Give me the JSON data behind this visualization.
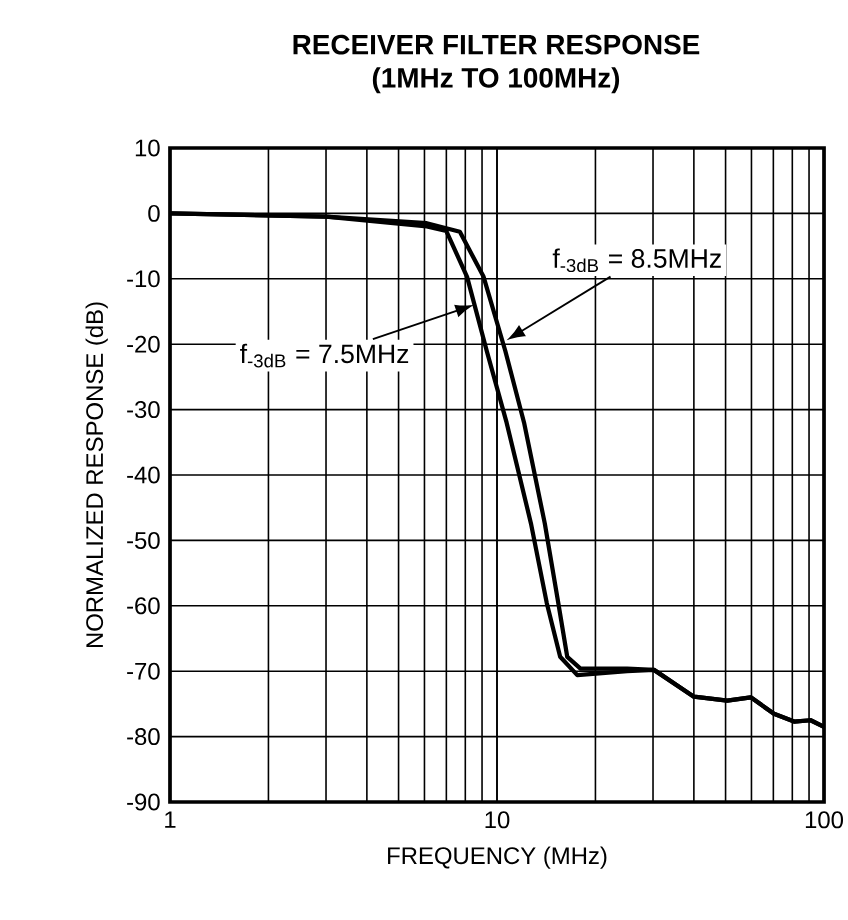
{
  "chart_data": {
    "type": "line",
    "title": "RECEIVER FILTER RESPONSE",
    "subtitle": "(1MHz TO 100MHz)",
    "xlabel": "FREQUENCY (MHz)",
    "ylabel": "NORMALIZED RESPONSE (dB)",
    "log": "x",
    "xlim": [
      1,
      100
    ],
    "xticks": [
      1,
      10,
      100
    ],
    "ylim": [
      -90,
      10
    ],
    "yticks": [
      10,
      0,
      -10,
      -20,
      -30,
      -40,
      -50,
      -60,
      -70,
      -80,
      -90
    ],
    "grid": true,
    "marker": "none",
    "line_style": "solid",
    "series": [
      {
        "color": "#000000",
        "x": [
          1,
          3.0,
          6.1,
          7.0,
          8.1,
          9.3,
          10.7,
          12.7,
          14.2,
          15.6,
          17.6,
          25,
          30.2,
          40,
          50.6,
          59.7,
          70.3,
          81,
          91,
          100
        ],
        "values": [
          0,
          -0.5,
          -2,
          -2.7,
          -9.7,
          -21,
          -32,
          -47.4,
          -59.6,
          -67.8,
          -70.6,
          -70,
          -69.8,
          -73.9,
          -74.5,
          -74,
          -76.5,
          -77.7,
          -77.5,
          -78.5
        ]
      },
      {
        "color": "#000000",
        "x": [
          1,
          3.0,
          6.1,
          7.7,
          9.1,
          10.6,
          12.1,
          14.0,
          15.4,
          16.4,
          18.0,
          25,
          30.2,
          40,
          50.6,
          59.7,
          70.3,
          81,
          91,
          100
        ],
        "values": [
          0,
          -0.5,
          -1.5,
          -2.8,
          -9.7,
          -21,
          -32,
          -47.4,
          -59.6,
          -67.8,
          -69.6,
          -69.6,
          -69.8,
          -73.9,
          -74.5,
          -74,
          -76.5,
          -77.7,
          -77.5,
          -78.5
        ]
      }
    ],
    "annotations": [
      {
        "text": "f$_{-3dB}$ = 7.5MHz",
        "x": 8.5,
        "y": -14
      },
      {
        "text": "f$_{-3dB}$ = 8.5MHz",
        "x": 10.7,
        "y": -19.4
      }
    ]
  }
}
